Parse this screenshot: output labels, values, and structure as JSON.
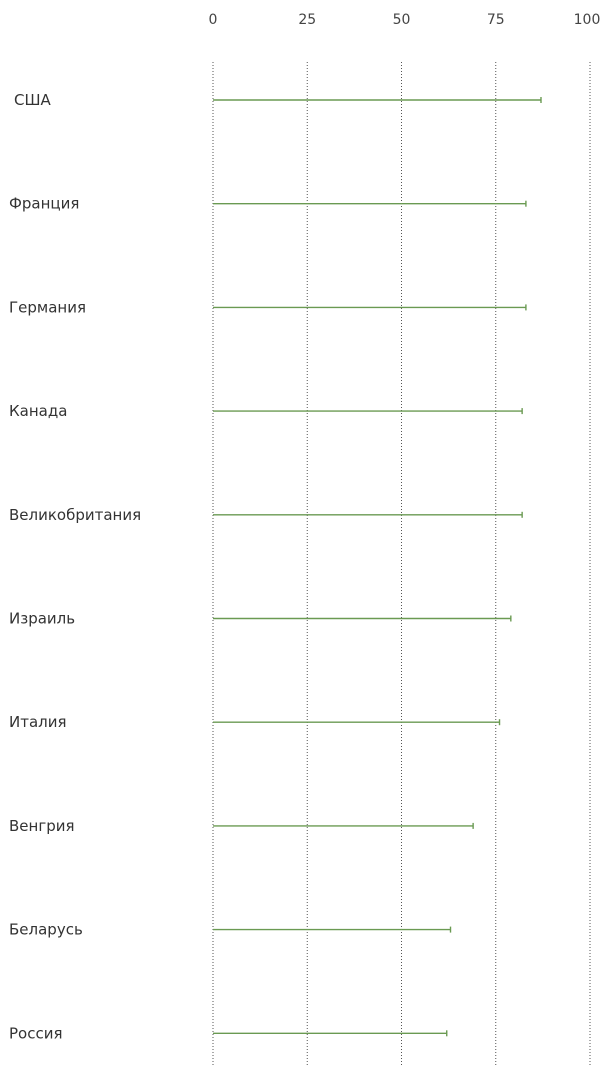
{
  "chart_data": {
    "type": "bar",
    "orientation": "horizontal",
    "title": "",
    "xlabel": "",
    "ylabel": "",
    "xlim": [
      0,
      100
    ],
    "ticks": [
      0,
      25,
      50,
      75,
      100
    ],
    "grid": true,
    "categories": [
      "США",
      "Франция",
      "Германия",
      "Канада",
      "Великобритания",
      "Израиль",
      "Италия",
      "Венгрия",
      "Беларусь",
      "Россия"
    ],
    "values": [
      87,
      83,
      83,
      82,
      82,
      79,
      76,
      69,
      63,
      62
    ],
    "color": "#6a9a52"
  }
}
